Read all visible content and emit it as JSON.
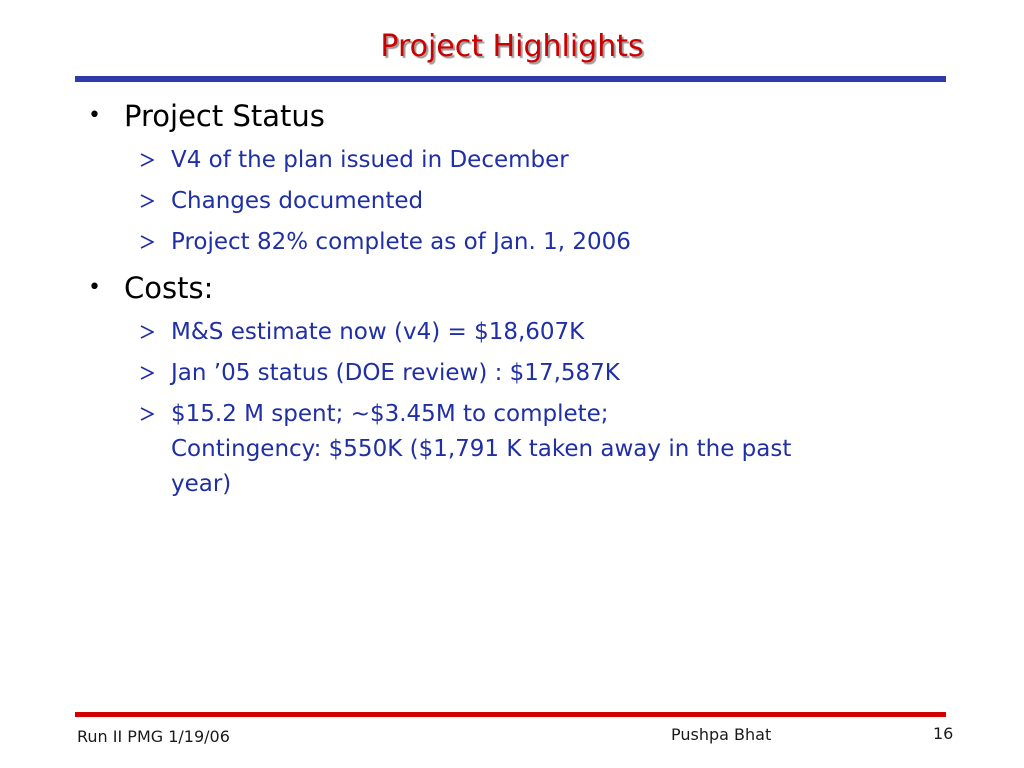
{
  "title": "Project Highlights",
  "sections": [
    {
      "heading": "Project Status",
      "items": [
        "V4 of the plan issued in December",
        "Changes documented",
        "Project 82% complete as of Jan. 1, 2006"
      ]
    },
    {
      "heading": "Costs:",
      "items": [
        "M&S estimate now (v4) = $18,607K",
        "Jan ’05 status (DOE review) : $17,587K",
        "$15.2 M spent; ~$3.45M to complete;"
      ],
      "continuation": [
        "Contingency: $550K ($1,791 K taken away in the past",
        "year)"
      ]
    }
  ],
  "footer": {
    "left": "Run II PMG  1/19/06",
    "center": "Pushpa Bhat",
    "page": "16"
  },
  "colors": {
    "title": "#cc0000",
    "top_rule": "#2d3aa8",
    "bottom_rule": "#d40000",
    "sub_text": "#1f2fa5",
    "bullet_text": "#000000"
  },
  "icons": {
    "bullet": "round-bullet-icon",
    "sub_bullet": "arrowhead-icon"
  }
}
